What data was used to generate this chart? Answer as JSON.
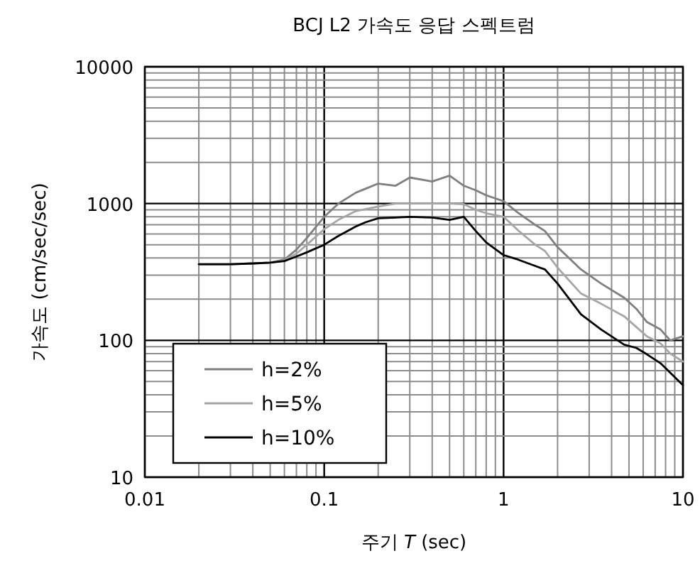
{
  "chart_data": {
    "type": "line",
    "title": "BCJ L2 가속도 응답 스펙트럼",
    "xlabel": "주기 *T* (sec)",
    "ylabel": "가속도 (cm/sec/sec)",
    "log": "xy",
    "grid": true,
    "legend": "bottom left",
    "xlim": [
      0.01,
      10
    ],
    "ylim": [
      10,
      10000
    ],
    "xticks": [
      0.01,
      0.1,
      1,
      10
    ],
    "yticks": [
      10,
      100,
      1000,
      10000
    ],
    "series": [
      {
        "name": "h=2%",
        "color": "#7f7f7f",
        "x": [
          0.02,
          0.03,
          0.04,
          0.05,
          0.06,
          0.07,
          0.08,
          0.1,
          0.12,
          0.15,
          0.2,
          0.25,
          0.3,
          0.4,
          0.5,
          0.6,
          0.7,
          0.8,
          1,
          1.2,
          1.5,
          1.7,
          2,
          2.7,
          3.5,
          4.7,
          5.5,
          6.3,
          7.5,
          8.5,
          10
        ],
        "values": [
          360,
          360,
          365,
          370,
          390,
          460,
          560,
          800,
          1000,
          1200,
          1400,
          1350,
          1550,
          1450,
          1600,
          1350,
          1250,
          1150,
          1040,
          860,
          700,
          630,
          480,
          330,
          260,
          205,
          170,
          136,
          120,
          100,
          107
        ]
      },
      {
        "name": "h=5%",
        "color": "#a6a6a6",
        "x": [
          0.02,
          0.03,
          0.04,
          0.05,
          0.06,
          0.07,
          0.08,
          0.1,
          0.12,
          0.15,
          0.2,
          0.25,
          0.3,
          0.4,
          0.5,
          0.6,
          0.7,
          0.8,
          1,
          1.2,
          1.5,
          1.7,
          2,
          2.7,
          3.5,
          4.7,
          5.5,
          6.3,
          7.5,
          8.5,
          10
        ],
        "values": [
          360,
          360,
          365,
          370,
          385,
          430,
          500,
          650,
          760,
          880,
          950,
          1000,
          1000,
          1000,
          1000,
          990,
          900,
          850,
          800,
          640,
          500,
          450,
          340,
          220,
          185,
          150,
          125,
          107,
          95,
          80,
          70
        ]
      },
      {
        "name": "h=10%",
        "color": "#000000",
        "x": [
          0.02,
          0.03,
          0.04,
          0.05,
          0.06,
          0.07,
          0.08,
          0.1,
          0.12,
          0.15,
          0.17,
          0.2,
          0.25,
          0.3,
          0.4,
          0.5,
          0.6,
          0.7,
          0.8,
          1,
          1.2,
          1.5,
          1.7,
          2,
          2.7,
          3.5,
          4.7,
          5.5,
          6.3,
          7.5,
          8.5,
          10
        ],
        "values": [
          360,
          360,
          365,
          370,
          380,
          410,
          440,
          500,
          580,
          680,
          730,
          780,
          790,
          800,
          790,
          760,
          800,
          630,
          520,
          420,
          390,
          350,
          330,
          260,
          155,
          120,
          93,
          88,
          79,
          68,
          58,
          47
        ]
      }
    ]
  }
}
